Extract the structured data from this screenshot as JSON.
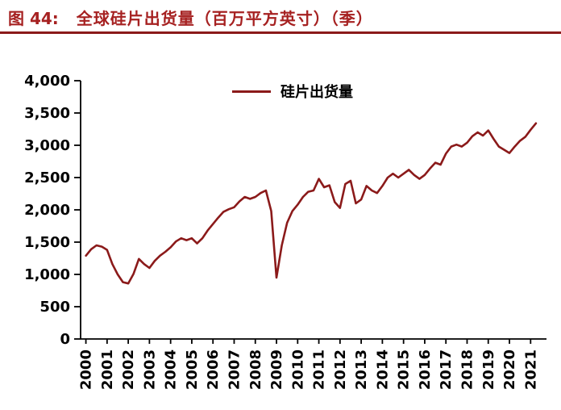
{
  "header": {
    "figure_label": "图 44:",
    "title": "全球硅片出货量（百万平方英寸）（季）"
  },
  "chart_data": {
    "type": "line",
    "title": "图 44: 全球硅片出货量（百万平方英寸）（季）",
    "legend": [
      "硅片出货量"
    ],
    "legend_position": "top-center",
    "line_color": "#8B1A1A",
    "xlabel": "",
    "ylabel": "",
    "ylim": [
      0,
      4000
    ],
    "ytick_step": 500,
    "grid": false,
    "x_unit": "quarter",
    "x_tick_labels": [
      "2000",
      "2001",
      "2002",
      "2003",
      "2004",
      "2005",
      "2006",
      "2007",
      "2008",
      "2009",
      "2010",
      "2011",
      "2012",
      "2013",
      "2014",
      "2015",
      "2016",
      "2017",
      "2018",
      "2019",
      "2020",
      "2021"
    ],
    "series": [
      {
        "name": "硅片出货量",
        "values": [
          1290,
          1390,
          1450,
          1430,
          1380,
          1160,
          1000,
          880,
          860,
          1010,
          1240,
          1160,
          1100,
          1210,
          1290,
          1350,
          1420,
          1510,
          1560,
          1530,
          1560,
          1480,
          1560,
          1680,
          1780,
          1880,
          1970,
          2010,
          2040,
          2130,
          2200,
          2170,
          2200,
          2260,
          2300,
          1980,
          950,
          1450,
          1800,
          1980,
          2080,
          2200,
          2280,
          2300,
          2480,
          2350,
          2380,
          2120,
          2030,
          2400,
          2450,
          2100,
          2160,
          2370,
          2300,
          2260,
          2370,
          2500,
          2560,
          2500,
          2560,
          2620,
          2540,
          2480,
          2540,
          2640,
          2730,
          2700,
          2870,
          2980,
          3010,
          2980,
          3040,
          3140,
          3200,
          3150,
          3230,
          3100,
          2980,
          2930,
          2880,
          2980,
          3070,
          3130,
          3240,
          3340
        ]
      }
    ]
  },
  "colors": {
    "background": "#FFFFFF",
    "title": "#A62121",
    "rule": "#8B1A1A",
    "line": "#8B1A1A",
    "axis": "#000000"
  }
}
